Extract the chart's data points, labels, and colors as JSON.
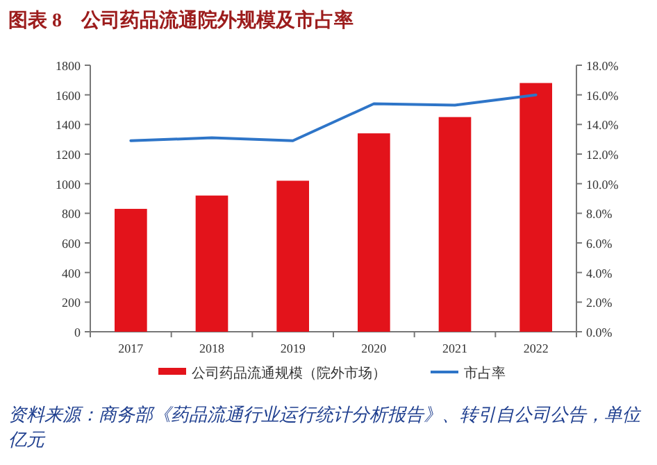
{
  "chart_data": {
    "type": "bar",
    "title": "图表 8　公司药品流通院外规模及市占率",
    "categories": [
      "2017",
      "2018",
      "2019",
      "2020",
      "2021",
      "2022"
    ],
    "series": [
      {
        "name": "公司药品流通规模（院外市场）",
        "color": "#e3131b",
        "values": [
          830,
          920,
          1020,
          1340,
          1450,
          1680
        ]
      },
      {
        "name": "市占率",
        "type": "line",
        "axis": "y2",
        "color": "#2e75c8",
        "values": [
          12.9,
          13.1,
          12.9,
          15.4,
          15.3,
          16.0
        ]
      }
    ],
    "ylim": [
      0,
      1800
    ],
    "yticks": [
      0,
      200,
      400,
      600,
      800,
      1000,
      1200,
      1400,
      1600,
      1800
    ],
    "y2lim": [
      0,
      18
    ],
    "y2ticks": [
      {
        "value": 0,
        "label": "0.0%"
      },
      {
        "value": 2,
        "label": "2.0%"
      },
      {
        "value": 4,
        "label": "4.0%"
      },
      {
        "value": 6,
        "label": "6.0%"
      },
      {
        "value": 8,
        "label": "8.0%"
      },
      {
        "value": 10,
        "label": "10.0%"
      },
      {
        "value": 12,
        "label": "12.0%"
      },
      {
        "value": 14,
        "label": "14.0%"
      },
      {
        "value": 16,
        "label": "16.0%"
      },
      {
        "value": 18,
        "label": "18.0%"
      }
    ],
    "legend": "bottom",
    "grid": false,
    "annotations": [
      "资料来源：商务部《药品流通行业运行统计分析报告》、转引自公司公告，单位亿元"
    ]
  }
}
